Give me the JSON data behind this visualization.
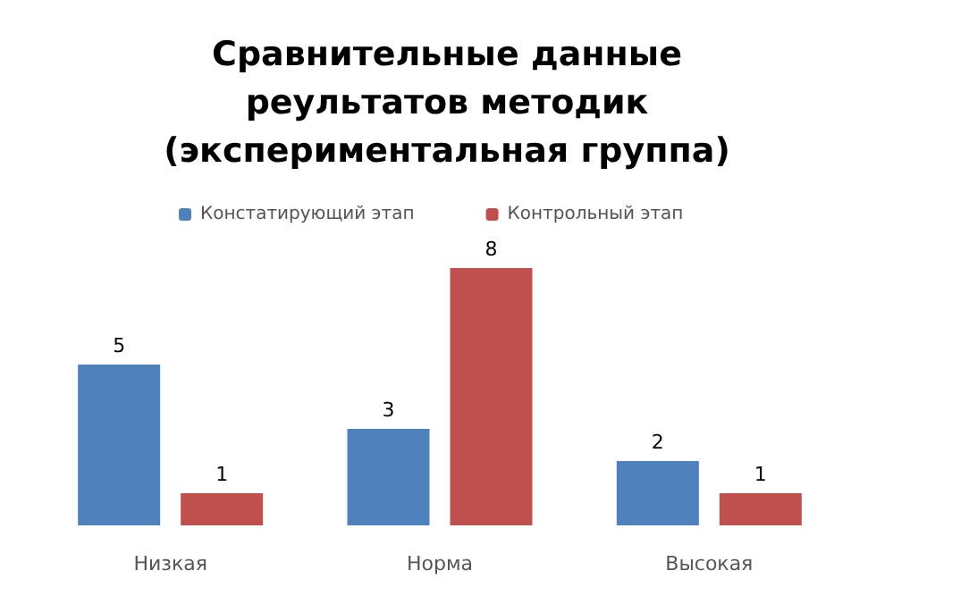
{
  "chart_data": {
    "type": "bar",
    "title": "Сравнительные данные\nреультатов методик\n(экспериментальная группа)",
    "categories": [
      "Низкая",
      "Норма",
      "Высокая"
    ],
    "series": [
      {
        "name": "Констатирующий этап",
        "color": "#4f81bd",
        "values": [
          5,
          3,
          2
        ]
      },
      {
        "name": "Контрольный этап",
        "color": "#c0504d",
        "values": [
          1,
          8,
          1
        ]
      }
    ],
    "data_labels": true,
    "legend": "top"
  }
}
